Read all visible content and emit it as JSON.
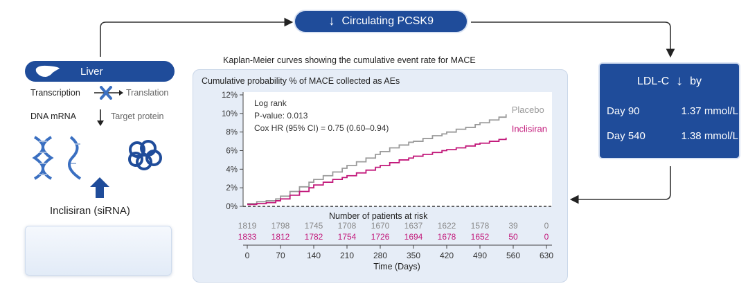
{
  "top_pill": {
    "arrow_icon": "down-arrow-icon",
    "label": "Circulating PCSK9"
  },
  "liver": {
    "label": "Liver",
    "transcription": "Transcription",
    "translation": "Translation",
    "dna_mrna": "DNA mRNA",
    "target_protein": "Target protein",
    "drug_label": "Inclisiran (siRNA)"
  },
  "km_caption": "Kaplan-Meier curves showing the cumulative event rate for MACE",
  "chart_data": {
    "type": "line",
    "title": "Cumulative probability % of MACE collected as AEs",
    "xlabel": "Time (Days)",
    "ylabel": "",
    "xlim": [
      0,
      630
    ],
    "ylim": [
      0,
      12
    ],
    "x_ticks": [
      0,
      70,
      140,
      210,
      280,
      350,
      420,
      490,
      560,
      630
    ],
    "y_ticks": [
      "0%",
      "2%",
      "4%",
      "6%",
      "8%",
      "10%",
      "12%"
    ],
    "annotations": [
      "Log rank",
      "P-value: 0.013",
      "Cox HR (95% CI) = 0.75 (0.60–0.94)"
    ],
    "series": [
      {
        "name": "Placebo",
        "color": "#9a9a9a",
        "x": [
          0,
          20,
          40,
          60,
          70,
          90,
          110,
          130,
          140,
          160,
          180,
          200,
          210,
          230,
          250,
          270,
          280,
          300,
          320,
          340,
          350,
          370,
          390,
          410,
          420,
          440,
          460,
          480,
          490,
          510,
          530,
          545
        ],
        "y": [
          0.3,
          0.5,
          0.6,
          0.8,
          1.1,
          1.6,
          2.1,
          2.6,
          2.9,
          3.3,
          3.7,
          4.1,
          4.4,
          4.8,
          5.2,
          5.6,
          5.9,
          6.3,
          6.6,
          6.9,
          7.0,
          7.3,
          7.6,
          7.8,
          8.0,
          8.3,
          8.5,
          8.8,
          9.0,
          9.3,
          9.6,
          9.9
        ]
      },
      {
        "name": "Inclisiran",
        "color": "#c2187a",
        "x": [
          0,
          20,
          40,
          60,
          70,
          90,
          110,
          130,
          140,
          160,
          180,
          200,
          210,
          230,
          250,
          270,
          280,
          300,
          320,
          340,
          350,
          370,
          390,
          410,
          420,
          440,
          460,
          480,
          490,
          510,
          530,
          545
        ],
        "y": [
          0.2,
          0.3,
          0.4,
          0.6,
          0.8,
          1.2,
          1.6,
          2.0,
          2.3,
          2.6,
          2.9,
          3.1,
          3.3,
          3.6,
          3.9,
          4.2,
          4.4,
          4.7,
          5.0,
          5.2,
          5.4,
          5.6,
          5.8,
          6.0,
          6.1,
          6.3,
          6.5,
          6.7,
          6.8,
          7.0,
          7.2,
          7.4
        ]
      }
    ],
    "risk_table": {
      "title": "Number of patients at risk",
      "placebo": [
        "1819",
        "1798",
        "1745",
        "1708",
        "1670",
        "1637",
        "1622",
        "1578",
        "39",
        "0"
      ],
      "inclisiran": [
        "1833",
        "1812",
        "1782",
        "1754",
        "1726",
        "1694",
        "1678",
        "1652",
        "50",
        "0"
      ]
    }
  },
  "ldl": {
    "title": "LDL-C",
    "arrow_icon": "down-arrow-icon",
    "by": "by",
    "rows": [
      {
        "label": "Day 90",
        "value": "1.37 mmol/L"
      },
      {
        "label": "Day 540",
        "value": "1.38 mmol/L"
      }
    ]
  },
  "colors": {
    "brand_blue": "#1f4c9a",
    "placebo": "#9a9a9a",
    "inclisiran": "#c2187a",
    "dna_blue": "#3a6fc1"
  }
}
